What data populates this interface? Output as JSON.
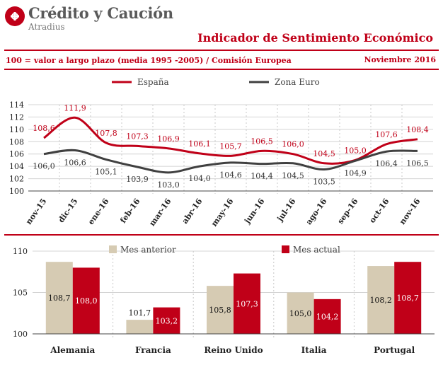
{
  "header": {
    "logo_name": "Crédito y Caución",
    "logo_sub": "Atradius",
    "title": "Indicador de Sentimiento Económico",
    "subtitle": "100 = valor a largo plazo (media 1995 -2005) / Comisión Europea",
    "date": "Noviembre 2016"
  },
  "colors": {
    "brand_red": "#c00018",
    "espana": "#c00018",
    "zona_euro": "#404040",
    "mes_anterior": "#d6cbb3",
    "mes_actual": "#c00018"
  },
  "chart_data": [
    {
      "type": "line",
      "categories": [
        "nov-15",
        "dic-15",
        "ene-16",
        "feb-16",
        "mar-16",
        "abr-16",
        "may-16",
        "jun-16",
        "jul-16",
        "ago-16",
        "sep-16",
        "oct-16",
        "nov-16"
      ],
      "series": [
        {
          "name": "España",
          "values": [
            108.6,
            111.9,
            107.8,
            107.3,
            106.9,
            106.1,
            105.7,
            106.5,
            106.0,
            104.5,
            105.0,
            107.6,
            108.4
          ],
          "labels": [
            "108,6",
            "111,9",
            "107,8",
            "107,3",
            "106,9",
            "106,1",
            "105,7",
            "106,5",
            "106,0",
            "104,5",
            "105,0",
            "107,6",
            "108,4"
          ]
        },
        {
          "name": "Zona Euro",
          "values": [
            106.0,
            106.6,
            105.1,
            103.9,
            103.0,
            104.0,
            104.6,
            104.4,
            104.5,
            103.5,
            104.9,
            106.4,
            106.5
          ],
          "labels": [
            "106,0",
            "106,6",
            "105,1",
            "103,9",
            "103,0",
            "104,0",
            "104,6",
            "104,4",
            "104,5",
            "103,5",
            "104,9",
            "106,4",
            "106,5"
          ]
        }
      ],
      "ylim": [
        100,
        114
      ],
      "yticks": [
        100,
        102,
        104,
        106,
        108,
        110,
        112,
        114
      ],
      "grid": true,
      "legend": "top"
    },
    {
      "type": "bar",
      "categories": [
        "Alemania",
        "Francia",
        "Reino Unido",
        "Italia",
        "Portugal"
      ],
      "series": [
        {
          "name": "Mes anterior",
          "values": [
            108.7,
            101.7,
            105.8,
            105.0,
            108.2
          ],
          "labels": [
            "108,7",
            "101,7",
            "105,8",
            "105,0",
            "108,2"
          ]
        },
        {
          "name": "Mes actual",
          "values": [
            108.0,
            103.2,
            107.3,
            104.2,
            108.7
          ],
          "labels": [
            "108,0",
            "103,2",
            "107,3",
            "104,2",
            "108,7"
          ]
        }
      ],
      "ylim": [
        100,
        110
      ],
      "yticks": [
        100,
        105,
        110
      ],
      "grid": true,
      "legend": "top"
    }
  ]
}
